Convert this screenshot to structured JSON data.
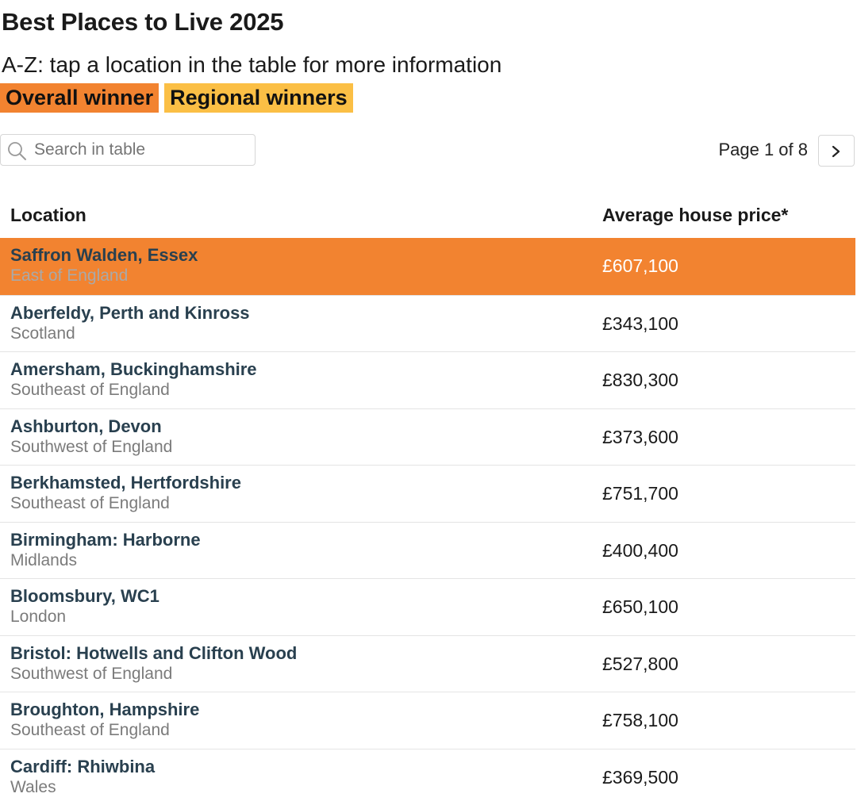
{
  "title": "Best Places to Live 2025",
  "subtitle": "A-Z: tap a location in the table for more information",
  "legend": [
    {
      "label": "Overall winner",
      "color": "#f28330"
    },
    {
      "label": "Regional winners",
      "color": "#fbbf45"
    }
  ],
  "search": {
    "placeholder": "Search in table",
    "value": ""
  },
  "pager": {
    "label": "Page 1 of 8",
    "next_icon": "chevron-right-icon"
  },
  "table": {
    "columns": [
      "Location",
      "Average house price*"
    ],
    "rows": [
      {
        "location": "Saffron Walden, Essex",
        "region": "East of England",
        "price": "£607,100",
        "highlight": "overall"
      },
      {
        "location": "Aberfeldy, Perth and Kinross",
        "region": "Scotland",
        "price": "£343,100",
        "highlight": ""
      },
      {
        "location": "Amersham, Buckinghamshire",
        "region": "Southeast of England",
        "price": "£830,300",
        "highlight": ""
      },
      {
        "location": "Ashburton, Devon",
        "region": "Southwest of England",
        "price": "£373,600",
        "highlight": ""
      },
      {
        "location": "Berkhamsted, Hertfordshire",
        "region": "Southeast of England",
        "price": "£751,700",
        "highlight": ""
      },
      {
        "location": "Birmingham: Harborne",
        "region": "Midlands",
        "price": "£400,400",
        "highlight": ""
      },
      {
        "location": "Bloomsbury, WC1",
        "region": "London",
        "price": "£650,100",
        "highlight": ""
      },
      {
        "location": "Bristol: Hotwells and Clifton Wood",
        "region": "Southwest of England",
        "price": "£527,800",
        "highlight": ""
      },
      {
        "location": "Broughton, Hampshire",
        "region": "Southeast of England",
        "price": "£758,100",
        "highlight": ""
      },
      {
        "location": "Cardiff: Rhiwbina",
        "region": "Wales",
        "price": "£369,500",
        "highlight": ""
      }
    ]
  },
  "colors": {
    "overall_row_bg": "#f28330",
    "overall_row_price": "#ffffff",
    "overall_row_region": "#a9a9a9",
    "location_text": "#29404f",
    "region_text": "#7b7b7b"
  }
}
